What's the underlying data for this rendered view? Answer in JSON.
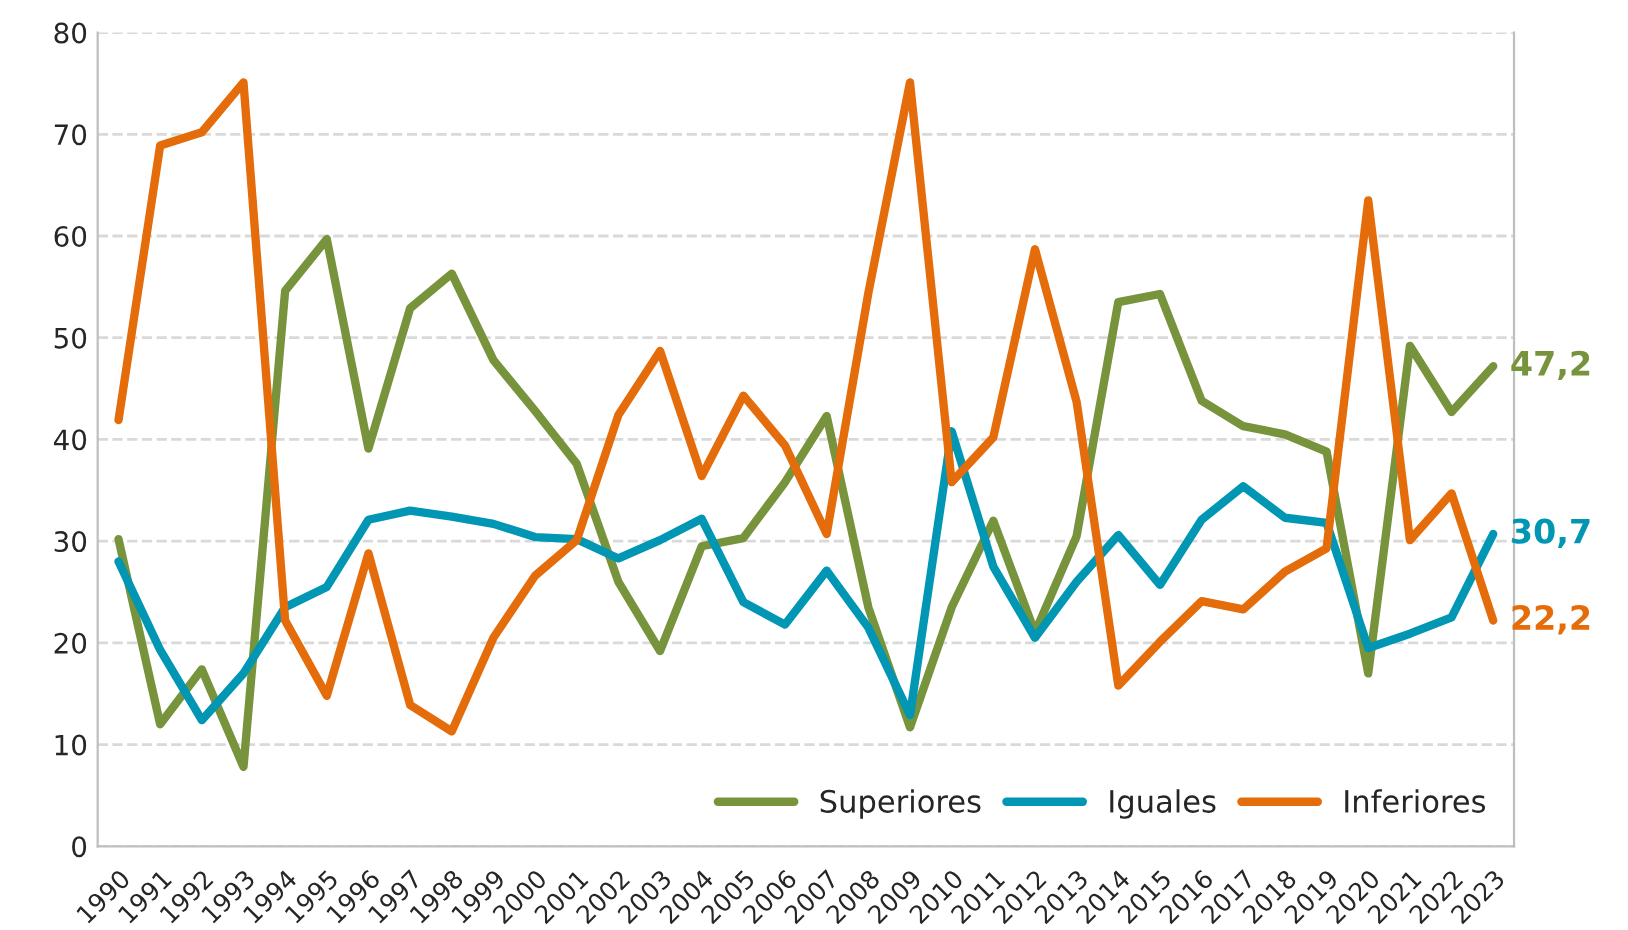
{
  "chart_data": {
    "type": "line",
    "categories": [
      "1990",
      "1991",
      "1992",
      "1993",
      "1994",
      "1995",
      "1996",
      "1997",
      "1998",
      "1999",
      "2000",
      "2001",
      "2002",
      "2003",
      "2004",
      "2005",
      "2006",
      "2007",
      "2008",
      "2009",
      "2010",
      "2011",
      "2012",
      "2013",
      "2014",
      "2015",
      "2016",
      "2017",
      "2018",
      "2019",
      "2020",
      "2021",
      "2022",
      "2023"
    ],
    "series": [
      {
        "name": "Superiores",
        "color": "#77933c",
        "values": [
          30.2,
          12,
          17.4,
          7.8,
          54.6,
          59.7,
          39.1,
          52.9,
          56.3,
          47.8,
          42.8,
          37.6,
          26,
          19.2,
          29.5,
          30.3,
          35.8,
          42.3,
          23.5,
          11.7,
          23.5,
          32,
          21,
          30.5,
          53.5,
          54.3,
          43.8,
          41.3,
          40.5,
          38.8,
          17,
          49.2,
          42.7,
          47.2
        ],
        "value_labels": [
          null,
          null,
          null,
          null,
          null,
          null,
          null,
          null,
          null,
          null,
          null,
          null,
          null,
          null,
          null,
          null,
          null,
          null,
          null,
          null,
          null,
          null,
          null,
          null,
          null,
          null,
          null,
          null,
          null,
          null,
          null,
          null,
          null,
          "47,2"
        ]
      },
      {
        "name": "Iguales",
        "color": "#0096b4",
        "values": [
          28,
          19.3,
          12.4,
          17,
          23.5,
          25.5,
          32.1,
          33,
          32.4,
          31.7,
          30.4,
          30.2,
          28.3,
          30.1,
          32.2,
          24,
          21.8,
          27.1,
          21.5,
          12.9,
          40.8,
          27.5,
          20.5,
          26,
          30.6,
          25.7,
          32.1,
          35.4,
          32.3,
          31.8,
          19.5,
          20.9,
          22.5,
          30.7
        ],
        "value_labels": [
          null,
          null,
          null,
          null,
          null,
          null,
          null,
          null,
          null,
          null,
          null,
          null,
          null,
          null,
          null,
          null,
          null,
          null,
          null,
          null,
          null,
          null,
          null,
          null,
          null,
          null,
          null,
          null,
          null,
          null,
          null,
          null,
          null,
          "30,7"
        ]
      },
      {
        "name": "Inferiores",
        "color": "#e46c0a",
        "values": [
          41.9,
          68.9,
          70.2,
          75.1,
          22.2,
          14.8,
          28.8,
          13.9,
          11.3,
          20.5,
          26.6,
          30.1,
          42.4,
          48.7,
          36.4,
          44.3,
          39.4,
          30.7,
          54.4,
          75.1,
          35.8,
          40.2,
          58.7,
          43.7,
          15.8,
          20.1,
          24.1,
          23.3,
          27,
          29.3,
          63.5,
          30.1,
          34.7,
          22.2
        ],
        "value_labels": [
          null,
          null,
          null,
          null,
          null,
          null,
          null,
          null,
          null,
          null,
          null,
          null,
          null,
          null,
          null,
          null,
          null,
          null,
          null,
          null,
          null,
          null,
          null,
          null,
          null,
          null,
          null,
          null,
          null,
          null,
          null,
          null,
          null,
          "22,2"
        ]
      }
    ],
    "ylim": [
      0,
      80
    ],
    "yticks": [
      0,
      10,
      20,
      30,
      40,
      50,
      60,
      70,
      80
    ],
    "grid": "y",
    "legend": "bottom right",
    "line_style": "solid"
  }
}
